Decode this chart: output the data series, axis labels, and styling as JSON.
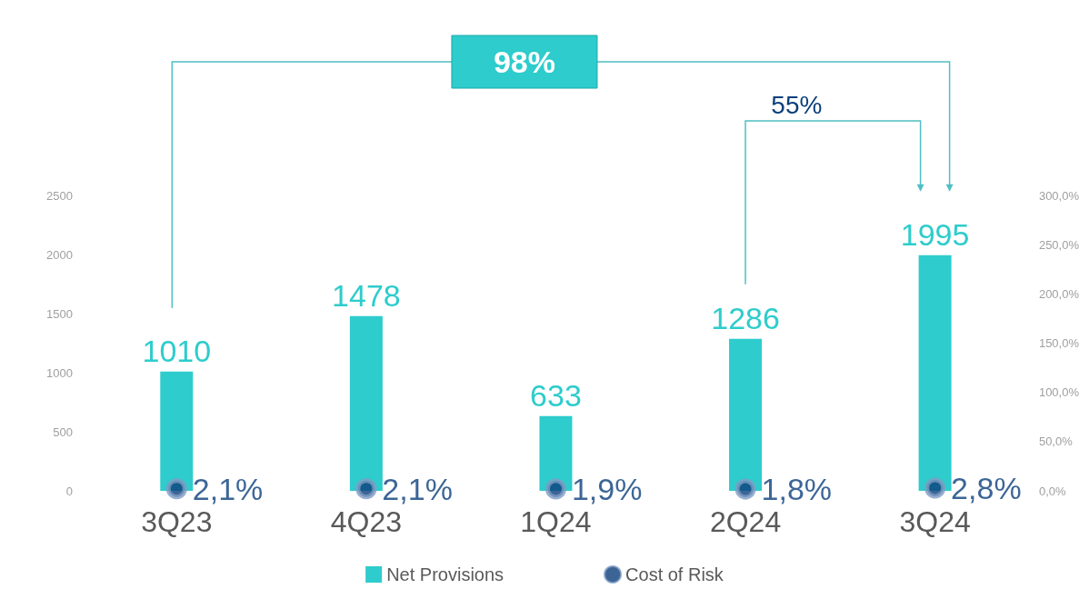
{
  "chart_data": {
    "type": "bar",
    "categories": [
      "3Q23",
      "4Q23",
      "1Q24",
      "2Q24",
      "3Q24"
    ],
    "series": [
      {
        "name": "Net Provisions",
        "color": "#2ecccc",
        "values": [
          1010,
          1478,
          633,
          1286,
          1995
        ],
        "value_labels": [
          "1010",
          "1478",
          "633",
          "1286",
          "1995"
        ]
      },
      {
        "name": "Cost of Risk",
        "type": "scatter",
        "axis": "y2",
        "color": "#0b3f7c",
        "values": [
          2.1,
          2.1,
          1.9,
          1.8,
          2.8
        ],
        "value_labels": [
          "2,1%",
          "2,1%",
          "1,9%",
          "1,8%",
          "2,8%"
        ]
      }
    ],
    "ylim": [
      0,
      2500
    ],
    "yticks": [
      0,
      500,
      1000,
      1500,
      2000,
      2500
    ],
    "y2lim": [
      0,
      300
    ],
    "y2ticks": [
      {
        "value": 0,
        "label": "0,0%"
      },
      {
        "value": 50,
        "label": "50,0%"
      },
      {
        "value": 100,
        "label": "100,0%"
      },
      {
        "value": 150,
        "label": "150,0%"
      },
      {
        "value": 200,
        "label": "200,0%"
      },
      {
        "value": 250,
        "label": "250,0%"
      },
      {
        "value": 300,
        "label": "300,0%"
      }
    ],
    "annotations": [
      "98%",
      "55%"
    ],
    "legend": "bottom",
    "grid": false,
    "marker": "circle"
  }
}
